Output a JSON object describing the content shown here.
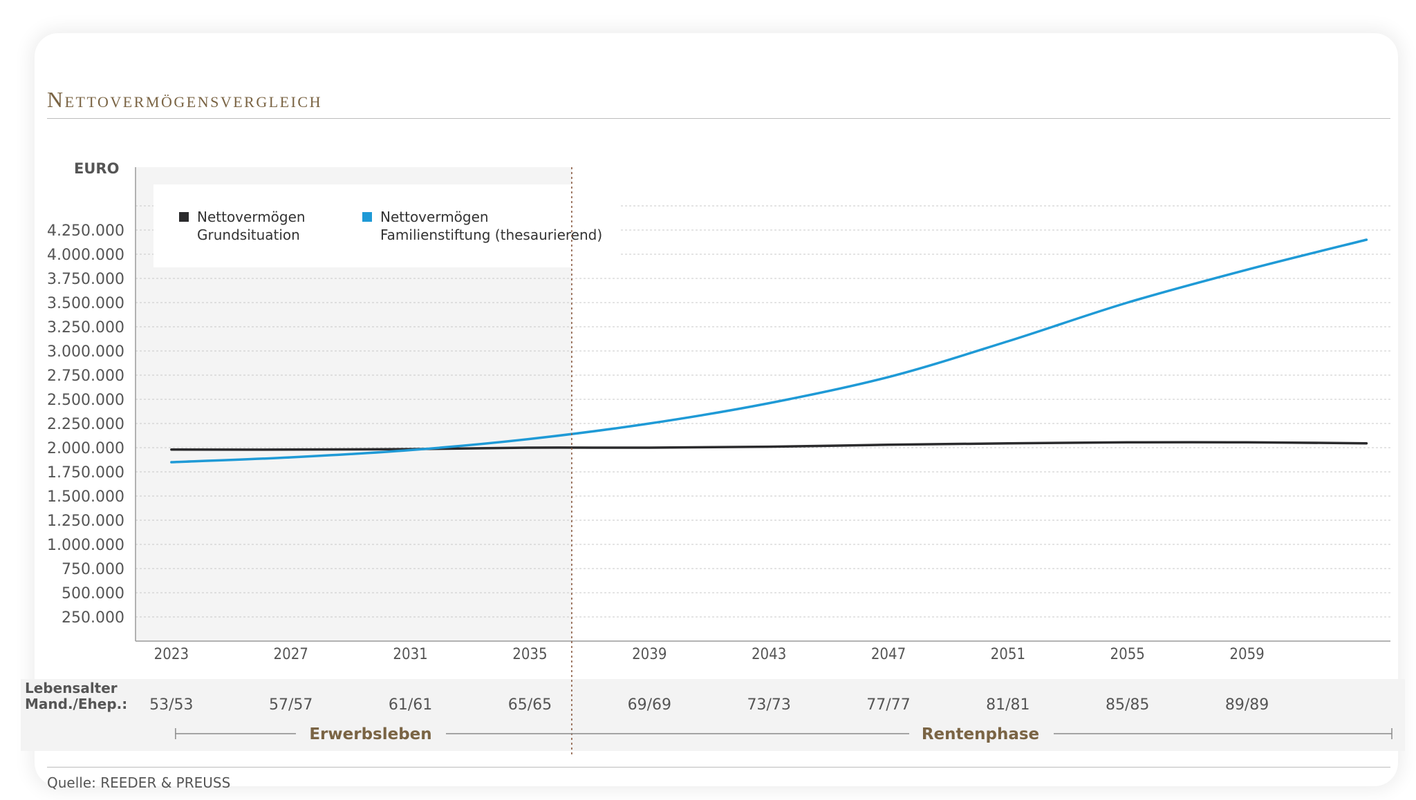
{
  "title": "Nettovermögensvergleich",
  "source": "Quelle: REEDER & PREUSS",
  "colors": {
    "black_series": "#2b2b2d",
    "blue_series": "#1f9ad6",
    "accent_brown": "#7a6444"
  },
  "chart_data": {
    "type": "line",
    "ylabel": "EURO",
    "ylim": [
      0,
      4500000
    ],
    "yticks": [
      250000,
      500000,
      750000,
      1000000,
      1250000,
      1500000,
      1750000,
      2000000,
      2250000,
      2500000,
      2750000,
      3000000,
      3250000,
      3500000,
      3750000,
      4000000,
      4250000
    ],
    "ytick_labels": [
      "250.000",
      "500.000",
      "750.000",
      "1.000.000",
      "1.250.000",
      "1.500.000",
      "1.750.000",
      "2.000.000",
      "2.250.000",
      "2.500.000",
      "2.750.000",
      "3.000.000",
      "3.250.000",
      "3.500.000",
      "3.750.000",
      "4.000.000",
      "4.250.000"
    ],
    "xlim": [
      2021.8,
      2063.8
    ],
    "xticks": [
      2023,
      2027,
      2031,
      2035,
      2039,
      2043,
      2047,
      2051,
      2055,
      2059
    ],
    "xtick_labels": [
      "2023",
      "2027",
      "2031",
      "2035",
      "2039",
      "2043",
      "2047",
      "2051",
      "2055",
      "2059"
    ],
    "grid": true,
    "legend_position": "top-left",
    "divider_year": 2036.4,
    "series": [
      {
        "name": "Nettovermögen Grundsituation",
        "legend_lines": [
          "Nettovermögen",
          "Grundsituation"
        ],
        "color": "#2b2b2d",
        "x": [
          2023,
          2027,
          2031,
          2035,
          2039,
          2043,
          2047,
          2051,
          2055,
          2059,
          2063
        ],
        "y": [
          1980000,
          1980000,
          1985000,
          2000000,
          2000000,
          2010000,
          2030000,
          2045000,
          2055000,
          2055000,
          2045000
        ]
      },
      {
        "name": "Nettovermögen Familienstiftung (thesaurierend)",
        "legend_lines": [
          "Nettovermögen",
          "Familienstiftung (thesaurierend)"
        ],
        "color": "#1f9ad6",
        "x": [
          2023,
          2027,
          2031,
          2035,
          2039,
          2043,
          2047,
          2051,
          2055,
          2059,
          2063
        ],
        "y": [
          1850000,
          1900000,
          1975000,
          2090000,
          2250000,
          2460000,
          2730000,
          3100000,
          3500000,
          3840000,
          4150000
        ]
      }
    ],
    "age_row": {
      "label_lines": [
        "Lebensalter",
        "Mand./Ehep.:"
      ],
      "values": [
        "53/53",
        "57/57",
        "61/61",
        "65/65",
        "69/69",
        "73/73",
        "77/77",
        "81/81",
        "85/85",
        "89/89"
      ]
    },
    "phases": [
      {
        "label": "Erwerbsleben",
        "from": 2023,
        "to": 2036.4
      },
      {
        "label": "Rentenphase",
        "from": 2036.4,
        "to": 2063.5
      }
    ]
  }
}
